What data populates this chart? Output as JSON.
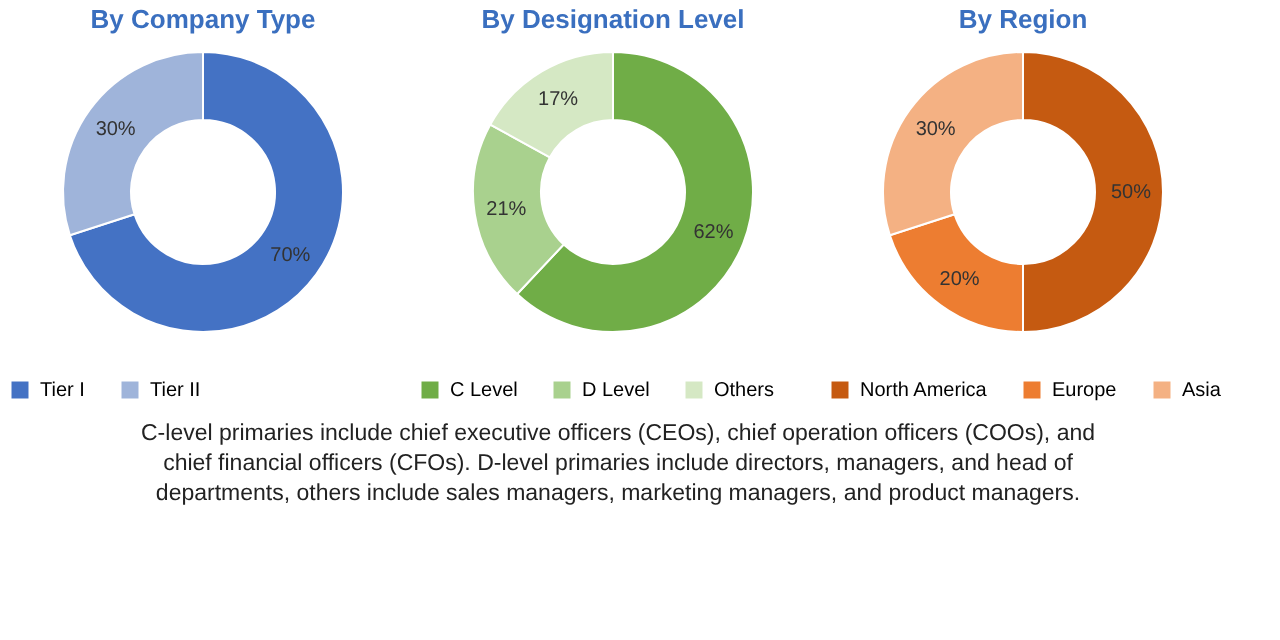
{
  "chart_data": [
    {
      "type": "donut",
      "title": "By Company Type",
      "categories": [
        "Tier I",
        "Tier II"
      ],
      "values": [
        70,
        30
      ],
      "colors": [
        "#4472c4",
        "#9fb4da"
      ],
      "value_labels": [
        "70%",
        "30%"
      ],
      "legend": "bottom",
      "annotations": [
        "C-level primaries include chief executive officers (CEOs), chief operation officers (COOs), and chief financial officers (CFOs). D-level primaries include directors, managers, and head of departments, others include sales managers, marketing managers, and product managers."
      ]
    },
    {
      "type": "donut",
      "title": "By Designation Level",
      "categories": [
        "C Level",
        "D Level",
        "Others"
      ],
      "values": [
        62,
        21,
        17
      ],
      "colors": [
        "#70ad47",
        "#a9d18e",
        "#d5e8c4"
      ],
      "value_labels": [
        "62%",
        "21%",
        "17%"
      ],
      "legend": "bottom"
    },
    {
      "type": "donut",
      "title": "By Region",
      "categories": [
        "North America",
        "Europe",
        "Asia"
      ],
      "values": [
        50,
        20,
        30
      ],
      "colors": [
        "#c55a11",
        "#ed7d31",
        "#f4b183"
      ],
      "value_labels": [
        "50%",
        "20%",
        "30%"
      ],
      "legend": "bottom"
    }
  ]
}
